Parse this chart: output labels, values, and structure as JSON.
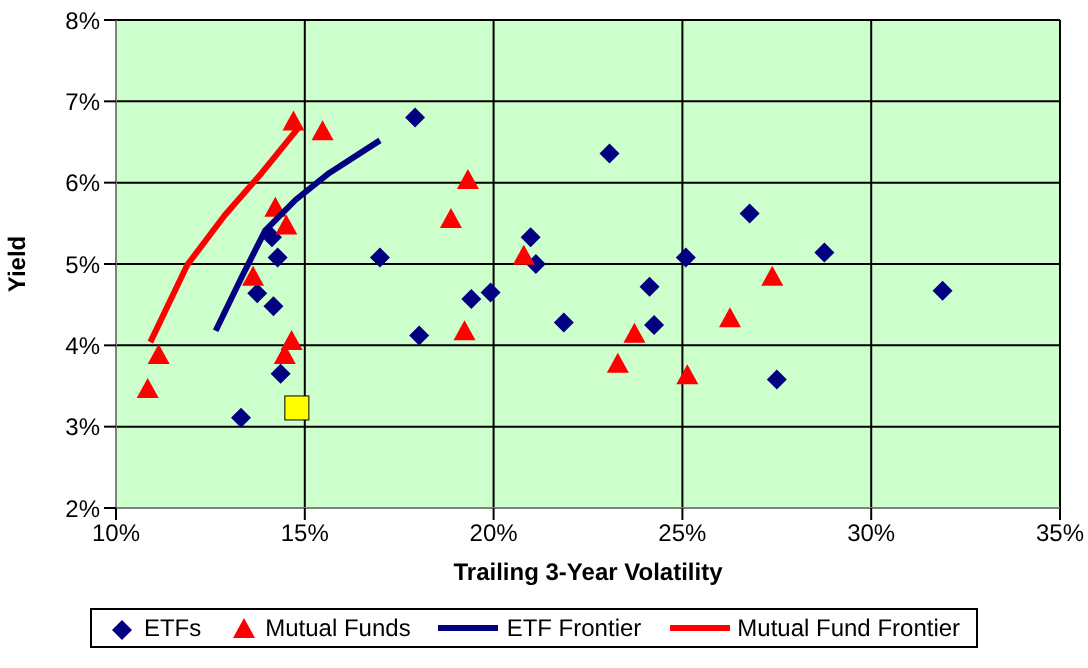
{
  "chart_data": {
    "type": "scatter",
    "xlabel": "Trailing 3-Year Volatility",
    "ylabel": "Yield",
    "xlim": [
      10,
      35
    ],
    "xticks": [
      {
        "value": 10,
        "label": "10%"
      },
      {
        "value": 15,
        "label": "15%"
      },
      {
        "value": 20,
        "label": "20%"
      },
      {
        "value": 25,
        "label": "25%"
      },
      {
        "value": 30,
        "label": "30%"
      },
      {
        "value": 35,
        "label": "35%"
      }
    ],
    "ylim": [
      2,
      8
    ],
    "yticks": [
      {
        "value": 2,
        "label": "2%"
      },
      {
        "value": 3,
        "label": "3%"
      },
      {
        "value": 4,
        "label": "4%"
      },
      {
        "value": 5,
        "label": "5%"
      },
      {
        "value": 6,
        "label": "6%"
      },
      {
        "value": 7,
        "label": "7%"
      },
      {
        "value": 8,
        "label": "8%"
      }
    ],
    "grid": true,
    "legend": "bottom",
    "series": [
      {
        "name": "ETFs",
        "marker": "diamond",
        "color": "#000080",
        "x": [
          13.31,
          17.92,
          14.13,
          14.28,
          13.74,
          14.17,
          14.36,
          16.99,
          18.03,
          19.41,
          19.92,
          20.98,
          21.12,
          21.86,
          23.07,
          26.78,
          25.09,
          28.76,
          24.13,
          24.25,
          31.89,
          27.5
        ],
        "values": [
          3.11,
          6.8,
          5.33,
          5.08,
          4.64,
          4.48,
          3.65,
          5.08,
          4.12,
          4.57,
          4.65,
          5.33,
          5.0,
          4.28,
          6.36,
          5.62,
          5.08,
          5.14,
          4.72,
          4.25,
          4.67,
          3.58
        ]
      },
      {
        "name": "Mutual Funds",
        "marker": "triangle",
        "color": "#ff0000",
        "x": [
          10.84,
          11.13,
          14.7,
          15.47,
          19.32,
          18.87,
          14.22,
          14.51,
          13.63,
          14.65,
          14.47,
          19.23,
          20.8,
          23.29,
          23.73,
          25.13,
          26.26,
          27.38
        ],
        "values": [
          3.45,
          3.87,
          6.74,
          6.62,
          6.02,
          5.54,
          5.68,
          5.46,
          4.83,
          4.04,
          3.87,
          4.16,
          5.09,
          3.76,
          4.13,
          3.62,
          4.32,
          4.83
        ]
      },
      {
        "name": "ETF Frontier",
        "type": "line",
        "marker": "none",
        "color": "#000080",
        "x": [
          12.64,
          13.33,
          13.95,
          14.76,
          15.65,
          16.99
        ],
        "values": [
          4.18,
          4.84,
          5.41,
          5.79,
          6.12,
          6.52
        ]
      },
      {
        "name": "Mutual Fund Frontier",
        "type": "line",
        "marker": "none",
        "color": "#ff0000",
        "x": [
          10.91,
          11.89,
          12.88,
          13.86,
          14.84
        ],
        "values": [
          4.04,
          4.99,
          5.6,
          6.12,
          6.68
        ]
      },
      {
        "marker": "square",
        "color": "#ffff00",
        "x": [
          14.79
        ],
        "values": [
          3.23
        ]
      }
    ]
  }
}
